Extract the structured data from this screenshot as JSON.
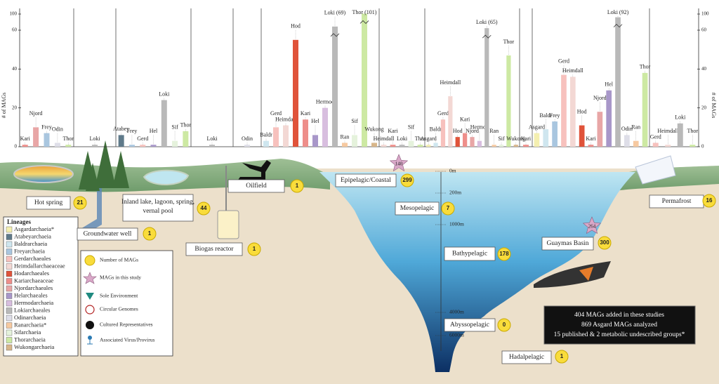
{
  "chart_data": {
    "type": "bar",
    "ylabel": "# of MAGs",
    "ylim": [
      0,
      100
    ],
    "yticks": [
      0,
      20,
      40,
      60,
      100
    ],
    "panels": [
      {
        "environment": "Hot spring",
        "count": 21,
        "bars": [
          {
            "name": "Kari",
            "value": 1,
            "color": "#ee8e8a"
          },
          {
            "name": "Njord",
            "value": 10,
            "color": "#e8a6a6"
          },
          {
            "name": "Frey",
            "value": 7,
            "color": "#a9c6df"
          },
          {
            "name": "Odin",
            "value": 2,
            "color": "#dedee8"
          },
          {
            "name": "Thor",
            "value": 1,
            "color": "#cde9a3"
          }
        ]
      },
      {
        "environment": "Groundwater well",
        "count": 1,
        "bars": [
          {
            "name": "Loki",
            "value": 1,
            "color": "#b9b9b9"
          }
        ]
      },
      {
        "environment": "Inland lake, lagoon, spring, vernal pool",
        "count": 44,
        "bars": [
          {
            "name": "Atabey",
            "value": 6,
            "color": "#5f7a8a"
          },
          {
            "name": "Frey",
            "value": 1,
            "color": "#a9c6df"
          },
          {
            "name": "Gerd",
            "value": 1,
            "color": "#f7c1bd"
          },
          {
            "name": "Hel",
            "value": 1,
            "color": "#a897c9"
          },
          {
            "name": "Loki",
            "value": 24,
            "color": "#b9b9b9"
          },
          {
            "name": "Sif",
            "value": 3,
            "color": "#e5f2dc"
          },
          {
            "name": "Thor",
            "value": 8,
            "color": "#cde9a3"
          }
        ]
      },
      {
        "environment": "Biogas reactor",
        "count": 1,
        "bars": [
          {
            "name": "Loki",
            "value": 1,
            "color": "#b9b9b9"
          }
        ]
      },
      {
        "environment": "Oilfield",
        "count": 1,
        "bars": [
          {
            "name": "Odin",
            "value": 1,
            "color": "#dedee8"
          }
        ]
      },
      {
        "environment": "Epipelagic/Coastal",
        "count": 299,
        "study_count": 140,
        "bars": [
          {
            "name": "Baldr",
            "value": 3,
            "color": "#cfe6ef"
          },
          {
            "name": "Gerd",
            "value": 10,
            "color": "#f7c1bd"
          },
          {
            "name": "Heimdall",
            "value": 11,
            "color": "#f3d8d4"
          },
          {
            "name": "Hod",
            "value": 55,
            "color": "#e0533a"
          },
          {
            "name": "Kari",
            "value": 14,
            "color": "#ee8e8a"
          },
          {
            "name": "Hel",
            "value": 6,
            "color": "#a897c9"
          },
          {
            "name": "Hermod",
            "value": 20,
            "color": "#d8bedf"
          },
          {
            "name": "Loki (69)",
            "value": 69,
            "color": "#b9b9b9"
          },
          {
            "name": "Ran",
            "value": 2,
            "color": "#f6c9a0"
          },
          {
            "name": "Sif",
            "value": 6,
            "color": "#e5f2dc"
          },
          {
            "name": "Thor (101)",
            "value": 101,
            "color": "#cde9a3"
          },
          {
            "name": "Wukong",
            "value": 2,
            "color": "#d8b68a"
          }
        ]
      },
      {
        "environment": "Mesopelagic",
        "count": 7,
        "bars": [
          {
            "name": "Heimdall",
            "value": 1,
            "color": "#f3d8d4"
          },
          {
            "name": "Kari",
            "value": 1,
            "color": "#ee8e8a"
          },
          {
            "name": "Loki",
            "value": 1,
            "color": "#b9b9b9"
          },
          {
            "name": "Sif",
            "value": 3,
            "color": "#e5f2dc"
          },
          {
            "name": "Thor",
            "value": 1,
            "color": "#cde9a3"
          }
        ]
      },
      {
        "environment": "Bathypelagic",
        "count": 178,
        "bars": [
          {
            "name": "Asgard",
            "value": 1,
            "color": "#f4efb0"
          },
          {
            "name": "Baldr",
            "value": 2,
            "color": "#cfe6ef"
          },
          {
            "name": "Gerd",
            "value": 14,
            "color": "#f7c1bd"
          },
          {
            "name": "Heimdall",
            "value": 26,
            "color": "#f3d8d4"
          },
          {
            "name": "Hod",
            "value": 5,
            "color": "#e0533a"
          },
          {
            "name": "Kari",
            "value": 7,
            "color": "#ee8e8a"
          },
          {
            "name": "Njord",
            "value": 5,
            "color": "#e8a6a6"
          },
          {
            "name": "Hermod",
            "value": 3,
            "color": "#d8bedf"
          },
          {
            "name": "Loki (65)",
            "value": 65,
            "color": "#b9b9b9"
          },
          {
            "name": "Ran",
            "value": 1,
            "color": "#f6c9a0"
          },
          {
            "name": "Sif",
            "value": 1,
            "color": "#e5f2dc"
          },
          {
            "name": "Thor",
            "value": 47,
            "color": "#cde9a3"
          },
          {
            "name": "Wukong",
            "value": 1,
            "color": "#d8b68a"
          }
        ]
      },
      {
        "environment": "Abyssopelagic",
        "count": 0,
        "bars": []
      },
      {
        "environment": "Hadalpelagic",
        "count": 1,
        "bars": [
          {
            "name": "Kari",
            "value": 1,
            "color": "#ee8e8a"
          }
        ]
      },
      {
        "environment": "Guaymas Basin",
        "count": 300,
        "study_count": 264,
        "bars": [
          {
            "name": "Asgard",
            "value": 7,
            "color": "#f4efb0"
          },
          {
            "name": "Baldr",
            "value": 9,
            "color": "#cfe6ef"
          },
          {
            "name": "Frey",
            "value": 13,
            "color": "#a9c6df"
          },
          {
            "name": "Gerd",
            "value": 37,
            "color": "#f7c1bd"
          },
          {
            "name": "Heimdall",
            "value": 36,
            "color": "#f3d8d4"
          },
          {
            "name": "Hod",
            "value": 11,
            "color": "#e0533a"
          },
          {
            "name": "Kari",
            "value": 1,
            "color": "#ee8e8a"
          },
          {
            "name": "Njord",
            "value": 18,
            "color": "#e8a6a6"
          },
          {
            "name": "Hel",
            "value": 29,
            "color": "#a897c9"
          },
          {
            "name": "Loki (92)",
            "value": 92,
            "color": "#b9b9b9"
          },
          {
            "name": "Odin",
            "value": 6,
            "color": "#dedee8"
          },
          {
            "name": "Ran",
            "value": 3,
            "color": "#f6c9a0"
          },
          {
            "name": "Thor",
            "value": 38,
            "color": "#cde9a3"
          }
        ]
      },
      {
        "environment": "Permafrost",
        "count": 16,
        "bars": [
          {
            "name": "Gerd",
            "value": 2,
            "color": "#f7c1bd"
          },
          {
            "name": "Heimdall",
            "value": 1,
            "color": "#f3d8d4"
          },
          {
            "name": "Loki",
            "value": 12,
            "color": "#b9b9b9"
          },
          {
            "name": "Thor",
            "value": 1,
            "color": "#cde9a3"
          }
        ]
      }
    ],
    "depths": [
      "0m",
      "200m",
      "1000m",
      "4000m",
      "6000m"
    ],
    "lineages_title": "Lineages",
    "lineages": [
      {
        "name": "Asgardarchaeia*",
        "color": "#f4efb0"
      },
      {
        "name": "Atabeyarchaeia",
        "color": "#5f7a8a"
      },
      {
        "name": "Baldrarchaeia",
        "color": "#cfe6ef"
      },
      {
        "name": "Freyarchaeia",
        "color": "#a9c6df"
      },
      {
        "name": "Gerdarchaeales",
        "color": "#f7c1bd"
      },
      {
        "name": "Heimdallarchaeaceae",
        "color": "#f3d8d4"
      },
      {
        "name": "Hodarchaeales",
        "color": "#e0533a"
      },
      {
        "name": "Kariarchaeaceae",
        "color": "#ee8e8a"
      },
      {
        "name": "Njordarchaeales",
        "color": "#e8a6a6"
      },
      {
        "name": "Helarchaeales",
        "color": "#a897c9"
      },
      {
        "name": "Hermodarchaeia",
        "color": "#d8bedf"
      },
      {
        "name": "Lokiarchaeales",
        "color": "#b9b9b9"
      },
      {
        "name": "Odinarchaeia",
        "color": "#dedee8"
      },
      {
        "name": "Ranarchaeia*",
        "color": "#f6c9a0"
      },
      {
        "name": "Sifarchaeia",
        "color": "#e5f2dc"
      },
      {
        "name": "Thorarchaeia",
        "color": "#cde9a3"
      },
      {
        "name": "Wukongarchaeia",
        "color": "#d8b68a"
      }
    ],
    "symbols": [
      "Number of MAGs",
      "MAGs in this study",
      "Sole Environment",
      "Circular Genomes",
      "Cultured Representatives",
      "Associated Virus/Provirus"
    ],
    "summary": [
      "404 MAGs added in these studies",
      "869 Asgard MAGs analyzed",
      "15 published & 2 metabolic undescribed groups*"
    ]
  }
}
